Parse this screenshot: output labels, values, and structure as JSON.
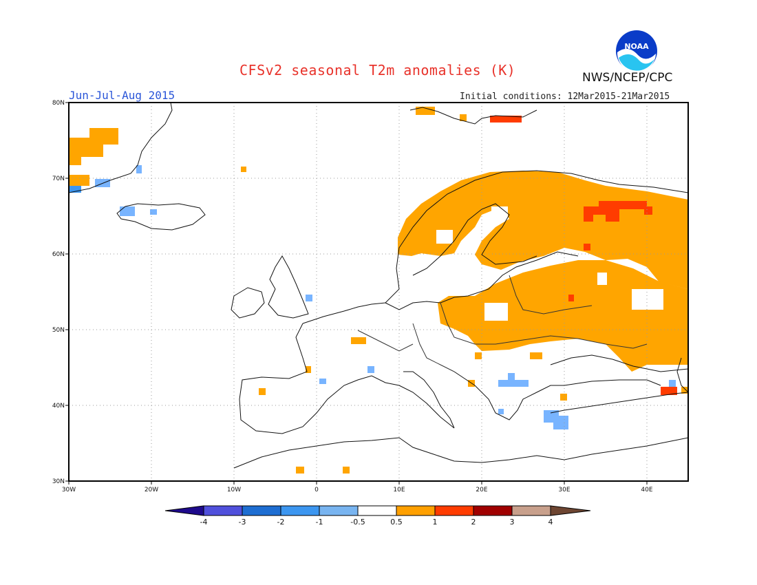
{
  "header": {
    "title": "CFSv2 seasonal T2m anomalies (K)",
    "agency": "NWS/NCEP/CPC",
    "period": "Jun-Jul-Aug 2015",
    "initial_conditions": "Initial conditions: 12Mar2015-21Mar2015",
    "logo_text": "NOAA"
  },
  "map": {
    "lon_range": [
      -30,
      45
    ],
    "lat_range": [
      30,
      80
    ],
    "gridlines": "dotted",
    "x_ticks": [
      "30W",
      "20W",
      "10W",
      "0",
      "10E",
      "20E",
      "30E",
      "40E"
    ],
    "y_ticks": [
      "30N",
      "40N",
      "50N",
      "60N",
      "70N",
      "80N"
    ],
    "anomaly_regions": [
      {
        "name": "Scandinavia-Finland-Russia",
        "category": "0.5-1",
        "color": "#ffa500"
      },
      {
        "name": "Eastern Europe-Belarus-Ukraine",
        "category": "0.5-1",
        "color": "#ffa500"
      },
      {
        "name": "Greenland coast",
        "category": "0.5-1",
        "color": "#ffa500"
      },
      {
        "name": "Kola Peninsula",
        "category": "1-2",
        "color": "#ff3c00"
      },
      {
        "name": "Svalbard",
        "category": "1-2",
        "color": "#ff3c00"
      },
      {
        "name": "Iceland",
        "category": "-1 to -0.5",
        "color": "#78b4ff"
      },
      {
        "name": "Turkey/Aegean",
        "category": "-1 to -0.5",
        "color": "#78b4ff"
      },
      {
        "name": "Balkans",
        "category": "-1 to -0.5",
        "color": "#78b4ff"
      }
    ]
  },
  "colorbar": {
    "labels": [
      "-4",
      "-3",
      "-2",
      "-1",
      "-0.5",
      "0.5",
      "1",
      "2",
      "3",
      "4"
    ],
    "colors": [
      "#1e0a8c",
      "#5050dc",
      "#1e6ed2",
      "#3c96f0",
      "#78b4f0",
      "#ffffff",
      "#ffa000",
      "#ff3c00",
      "#a00000",
      "#c8a08c",
      "#6e4632"
    ]
  }
}
